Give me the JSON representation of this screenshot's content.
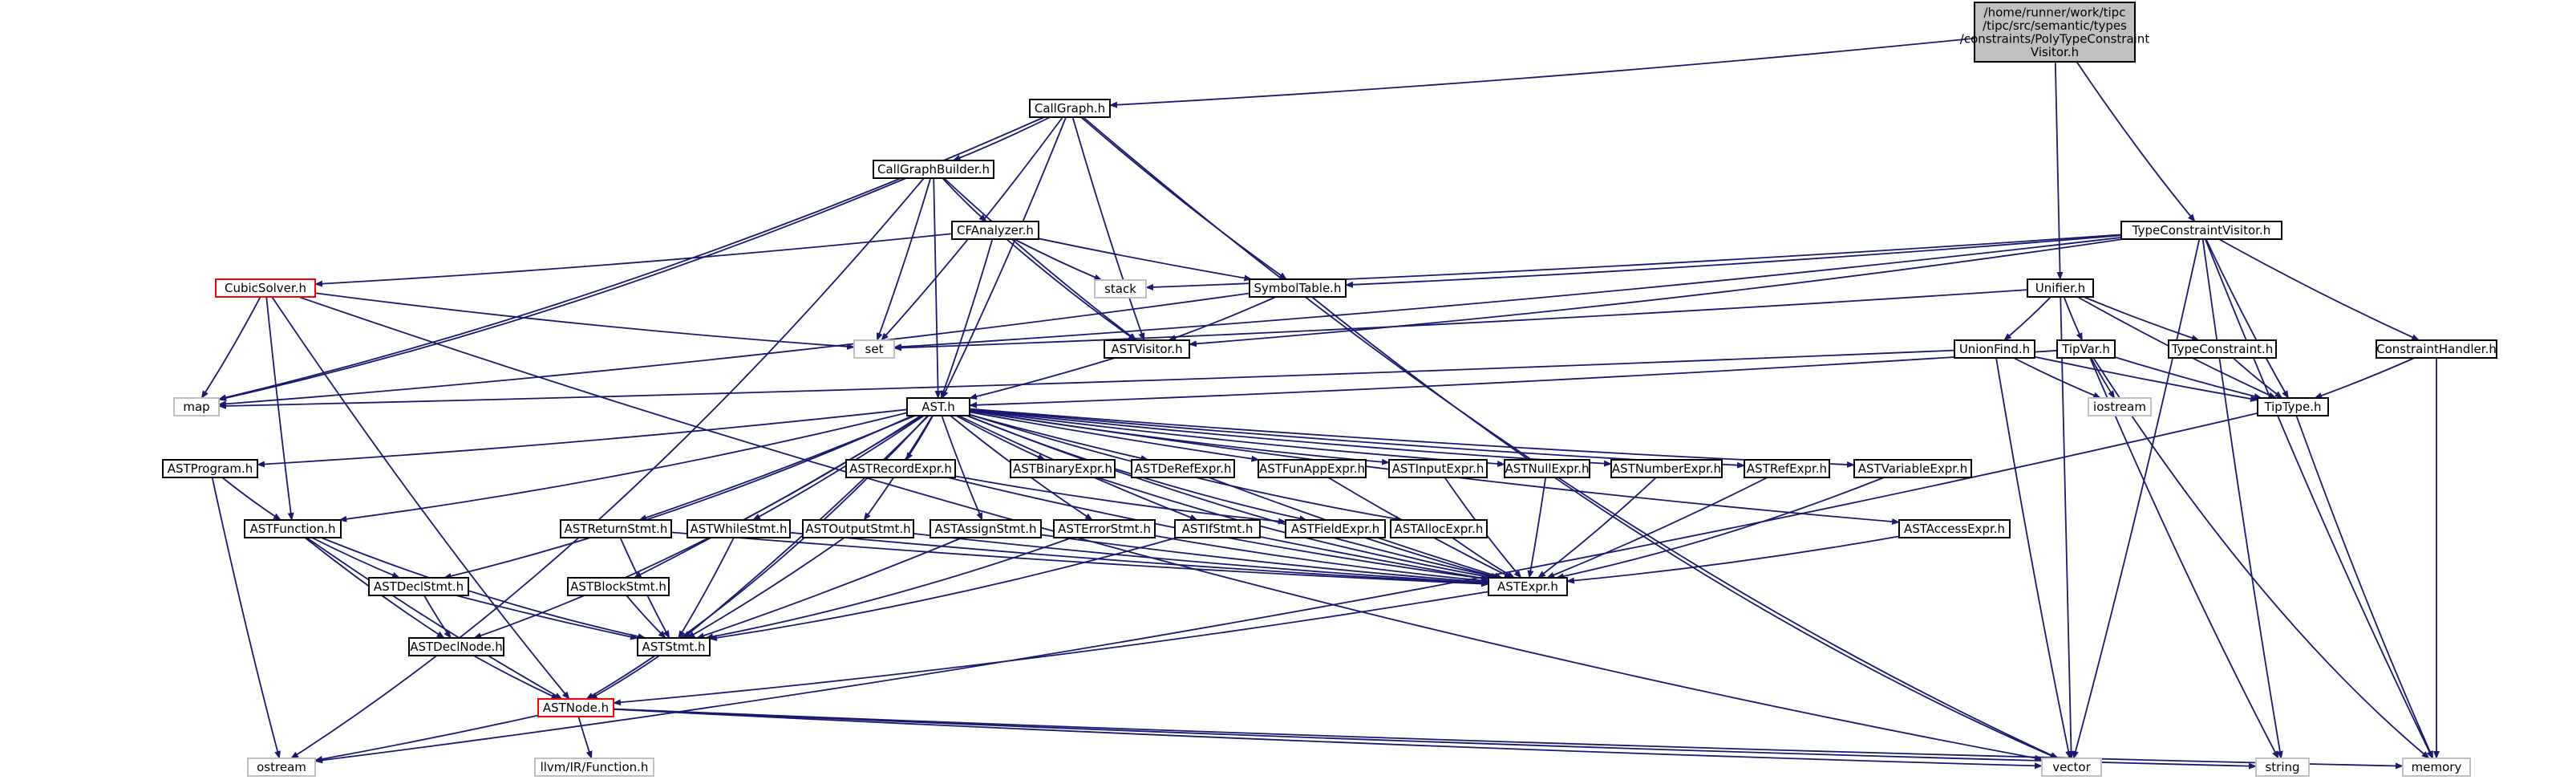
{
  "colors": {
    "edge": "#191970",
    "box_border": "#000000",
    "external_border": "#bfbfbf",
    "special_border": "#ff0000",
    "root_fill": "#bfbfbf",
    "node_fill": "#ffffff"
  },
  "diagram": {
    "nodes": [
      {
        "id": "root",
        "lines": [
          "/home/runner/work/tipc",
          "/tipc/src/semantic/types",
          "/constraints/PolyTypeConstraint",
          "Visitor.h"
        ],
        "style": "root"
      },
      {
        "id": "callgraph",
        "lines": [
          "CallGraph.h"
        ],
        "style": "box"
      },
      {
        "id": "callgraphbuilder",
        "lines": [
          "CallGraphBuilder.h"
        ],
        "style": "box"
      },
      {
        "id": "cfanalyzer",
        "lines": [
          "CFAnalyzer.h"
        ],
        "style": "box"
      },
      {
        "id": "cubicsolver",
        "lines": [
          "CubicSolver.h"
        ],
        "style": "special"
      },
      {
        "id": "stack",
        "lines": [
          "stack"
        ],
        "style": "external"
      },
      {
        "id": "set",
        "lines": [
          "set"
        ],
        "style": "external"
      },
      {
        "id": "map",
        "lines": [
          "map"
        ],
        "style": "external"
      },
      {
        "id": "symboltable",
        "lines": [
          "SymbolTable.h"
        ],
        "style": "box"
      },
      {
        "id": "astvisitor",
        "lines": [
          "ASTVisitor.h"
        ],
        "style": "box"
      },
      {
        "id": "tcv",
        "lines": [
          "TypeConstraintVisitor.h"
        ],
        "style": "box"
      },
      {
        "id": "unifier",
        "lines": [
          "Unifier.h"
        ],
        "style": "box"
      },
      {
        "id": "unionfind",
        "lines": [
          "UnionFind.h"
        ],
        "style": "box"
      },
      {
        "id": "tipvar",
        "lines": [
          "TipVar.h"
        ],
        "style": "box"
      },
      {
        "id": "typeconstraint",
        "lines": [
          "TypeConstraint.h"
        ],
        "style": "box"
      },
      {
        "id": "constrainthandler",
        "lines": [
          "ConstraintHandler.h"
        ],
        "style": "box"
      },
      {
        "id": "tiptype",
        "lines": [
          "TipType.h"
        ],
        "style": "box"
      },
      {
        "id": "iostream",
        "lines": [
          "iostream"
        ],
        "style": "external"
      },
      {
        "id": "ast",
        "lines": [
          "AST.h"
        ],
        "style": "box"
      },
      {
        "id": "astprogram",
        "lines": [
          "ASTProgram.h"
        ],
        "style": "box"
      },
      {
        "id": "astfunction",
        "lines": [
          "ASTFunction.h"
        ],
        "style": "box"
      },
      {
        "id": "astrecordexpr",
        "lines": [
          "ASTRecordExpr.h"
        ],
        "style": "box"
      },
      {
        "id": "astbinaryexpr",
        "lines": [
          "ASTBinaryExpr.h"
        ],
        "style": "box"
      },
      {
        "id": "astderefexpr",
        "lines": [
          "ASTDeRefExpr.h"
        ],
        "style": "box"
      },
      {
        "id": "astfunappexpr",
        "lines": [
          "ASTFunAppExpr.h"
        ],
        "style": "box"
      },
      {
        "id": "astinputexpr",
        "lines": [
          "ASTInputExpr.h"
        ],
        "style": "box"
      },
      {
        "id": "astnullexpr",
        "lines": [
          "ASTNullExpr.h"
        ],
        "style": "box"
      },
      {
        "id": "astnumberexpr",
        "lines": [
          "ASTNumberExpr.h"
        ],
        "style": "box"
      },
      {
        "id": "astrefexpr",
        "lines": [
          "ASTRefExpr.h"
        ],
        "style": "box"
      },
      {
        "id": "astvariableexpr",
        "lines": [
          "ASTVariableExpr.h"
        ],
        "style": "box"
      },
      {
        "id": "astaccessexpr",
        "lines": [
          "ASTAccessExpr.h"
        ],
        "style": "box"
      },
      {
        "id": "astreturnstmt",
        "lines": [
          "ASTReturnStmt.h"
        ],
        "style": "box"
      },
      {
        "id": "astwhilestmt",
        "lines": [
          "ASTWhileStmt.h"
        ],
        "style": "box"
      },
      {
        "id": "astoutputstmt",
        "lines": [
          "ASTOutputStmt.h"
        ],
        "style": "box"
      },
      {
        "id": "astassignstmt",
        "lines": [
          "ASTAssignStmt.h"
        ],
        "style": "box"
      },
      {
        "id": "asterrorstmt",
        "lines": [
          "ASTErrorStmt.h"
        ],
        "style": "box"
      },
      {
        "id": "astifstmt",
        "lines": [
          "ASTIfStmt.h"
        ],
        "style": "box"
      },
      {
        "id": "astfieldexpr",
        "lines": [
          "ASTFieldExpr.h"
        ],
        "style": "box"
      },
      {
        "id": "astallocexpr",
        "lines": [
          "ASTAllocExpr.h"
        ],
        "style": "box"
      },
      {
        "id": "astdeclstmt",
        "lines": [
          "ASTDeclStmt.h"
        ],
        "style": "box"
      },
      {
        "id": "astblockstmt",
        "lines": [
          "ASTBlockStmt.h"
        ],
        "style": "box"
      },
      {
        "id": "astexpr",
        "lines": [
          "ASTExpr.h"
        ],
        "style": "box"
      },
      {
        "id": "astdeclnode",
        "lines": [
          "ASTDeclNode.h"
        ],
        "style": "box"
      },
      {
        "id": "aststmt",
        "lines": [
          "ASTStmt.h"
        ],
        "style": "box"
      },
      {
        "id": "astnode",
        "lines": [
          "ASTNode.h"
        ],
        "style": "special"
      },
      {
        "id": "llvm",
        "lines": [
          "llvm/IR/Function.h"
        ],
        "style": "external"
      },
      {
        "id": "ostream",
        "lines": [
          "ostream"
        ],
        "style": "external"
      },
      {
        "id": "vector",
        "lines": [
          "vector"
        ],
        "style": "external"
      },
      {
        "id": "string",
        "lines": [
          "string"
        ],
        "style": "external"
      },
      {
        "id": "memory",
        "lines": [
          "memory"
        ],
        "style": "external"
      }
    ],
    "edges": [
      [
        "root",
        "callgraph"
      ],
      [
        "root",
        "unifier"
      ],
      [
        "root",
        "tcv"
      ],
      [
        "callgraph",
        "callgraphbuilder"
      ],
      [
        "callgraph",
        "map"
      ],
      [
        "callgraph",
        "set"
      ],
      [
        "callgraph",
        "astvisitor"
      ],
      [
        "callgraph",
        "symboltable"
      ],
      [
        "callgraph",
        "ast"
      ],
      [
        "callgraph",
        "vector"
      ],
      [
        "callgraphbuilder",
        "cfanalyzer"
      ],
      [
        "callgraphbuilder",
        "set"
      ],
      [
        "callgraphbuilder",
        "map"
      ],
      [
        "callgraphbuilder",
        "ast"
      ],
      [
        "callgraphbuilder",
        "astvisitor"
      ],
      [
        "callgraphbuilder",
        "ostream"
      ],
      [
        "cfanalyzer",
        "cubicsolver"
      ],
      [
        "cfanalyzer",
        "stack"
      ],
      [
        "cfanalyzer",
        "symboltable"
      ],
      [
        "cfanalyzer",
        "astvisitor"
      ],
      [
        "cfanalyzer",
        "ast"
      ],
      [
        "cubicsolver",
        "set"
      ],
      [
        "cubicsolver",
        "map"
      ],
      [
        "cubicsolver",
        "astfunction"
      ],
      [
        "cubicsolver",
        "astnode"
      ],
      [
        "cubicsolver",
        "vector"
      ],
      [
        "symboltable",
        "astvisitor"
      ],
      [
        "symboltable",
        "map"
      ],
      [
        "symboltable",
        "vector"
      ],
      [
        "astvisitor",
        "ast"
      ],
      [
        "tcv",
        "symboltable"
      ],
      [
        "tcv",
        "astvisitor"
      ],
      [
        "tcv",
        "stack"
      ],
      [
        "tcv",
        "set"
      ],
      [
        "tcv",
        "constrainthandler"
      ],
      [
        "tcv",
        "tiptype"
      ],
      [
        "tcv",
        "vector"
      ],
      [
        "tcv",
        "string"
      ],
      [
        "tcv",
        "memory"
      ],
      [
        "unifier",
        "unionfind"
      ],
      [
        "unifier",
        "tipvar"
      ],
      [
        "unifier",
        "typeconstraint"
      ],
      [
        "unifier",
        "tiptype"
      ],
      [
        "unifier",
        "set"
      ],
      [
        "unifier",
        "vector"
      ],
      [
        "unionfind",
        "tiptype"
      ],
      [
        "unionfind",
        "map"
      ],
      [
        "unionfind",
        "iostream"
      ],
      [
        "unionfind",
        "vector"
      ],
      [
        "tipvar",
        "tiptype"
      ],
      [
        "tipvar",
        "ast"
      ],
      [
        "tipvar",
        "iostream"
      ],
      [
        "tipvar",
        "string"
      ],
      [
        "tipvar",
        "memory"
      ],
      [
        "typeconstraint",
        "tiptype"
      ],
      [
        "constrainthandler",
        "tiptype"
      ],
      [
        "constrainthandler",
        "memory"
      ],
      [
        "tiptype",
        "memory"
      ],
      [
        "tiptype",
        "ostream"
      ],
      [
        "ast",
        "astprogram"
      ],
      [
        "ast",
        "astfunction"
      ],
      [
        "ast",
        "astdeclstmt"
      ],
      [
        "ast",
        "astdeclnode"
      ],
      [
        "ast",
        "astnode"
      ],
      [
        "ast",
        "aststmt"
      ],
      [
        "ast",
        "astexpr"
      ],
      [
        "ast",
        "astrecordexpr"
      ],
      [
        "ast",
        "astbinaryexpr"
      ],
      [
        "ast",
        "astderefexpr"
      ],
      [
        "ast",
        "astfunappexpr"
      ],
      [
        "ast",
        "astinputexpr"
      ],
      [
        "ast",
        "astnullexpr"
      ],
      [
        "ast",
        "astnumberexpr"
      ],
      [
        "ast",
        "astrefexpr"
      ],
      [
        "ast",
        "astvariableexpr"
      ],
      [
        "ast",
        "astaccessexpr"
      ],
      [
        "ast",
        "astreturnstmt"
      ],
      [
        "ast",
        "astwhilestmt"
      ],
      [
        "ast",
        "astoutputstmt"
      ],
      [
        "ast",
        "astassignstmt"
      ],
      [
        "ast",
        "asterrorstmt"
      ],
      [
        "ast",
        "astifstmt"
      ],
      [
        "ast",
        "astfieldexpr"
      ],
      [
        "ast",
        "astallocexpr"
      ],
      [
        "ast",
        "astblockstmt"
      ],
      [
        "astprogram",
        "astfunction"
      ],
      [
        "astprogram",
        "ostream"
      ],
      [
        "astfunction",
        "astdeclstmt"
      ],
      [
        "astfunction",
        "astdeclnode"
      ],
      [
        "astfunction",
        "aststmt"
      ],
      [
        "astfunction",
        "astnode"
      ],
      [
        "astdeclstmt",
        "astdeclnode"
      ],
      [
        "astdeclstmt",
        "aststmt"
      ],
      [
        "astdeclnode",
        "astnode"
      ],
      [
        "astblockstmt",
        "aststmt"
      ],
      [
        "astreturnstmt",
        "aststmt"
      ],
      [
        "astreturnstmt",
        "astexpr"
      ],
      [
        "astwhilestmt",
        "aststmt"
      ],
      [
        "astwhilestmt",
        "astexpr"
      ],
      [
        "astoutputstmt",
        "aststmt"
      ],
      [
        "astoutputstmt",
        "astexpr"
      ],
      [
        "astassignstmt",
        "aststmt"
      ],
      [
        "astassignstmt",
        "astexpr"
      ],
      [
        "asterrorstmt",
        "aststmt"
      ],
      [
        "asterrorstmt",
        "astexpr"
      ],
      [
        "astifstmt",
        "aststmt"
      ],
      [
        "astifstmt",
        "astexpr"
      ],
      [
        "astrecordexpr",
        "astexpr"
      ],
      [
        "astrecordexpr",
        "astfieldexpr"
      ],
      [
        "astbinaryexpr",
        "astexpr"
      ],
      [
        "astderefexpr",
        "astexpr"
      ],
      [
        "astfunappexpr",
        "astexpr"
      ],
      [
        "astinputexpr",
        "astexpr"
      ],
      [
        "astnullexpr",
        "astexpr"
      ],
      [
        "astnumberexpr",
        "astexpr"
      ],
      [
        "astrefexpr",
        "astexpr"
      ],
      [
        "astvariableexpr",
        "astexpr"
      ],
      [
        "astaccessexpr",
        "astexpr"
      ],
      [
        "astfieldexpr",
        "astexpr"
      ],
      [
        "astallocexpr",
        "astexpr"
      ],
      [
        "astexpr",
        "astnode"
      ],
      [
        "aststmt",
        "astnode"
      ],
      [
        "astnode",
        "llvm"
      ],
      [
        "astnode",
        "ostream"
      ],
      [
        "astnode",
        "vector"
      ],
      [
        "astnode",
        "string"
      ],
      [
        "astnode",
        "memory"
      ]
    ]
  }
}
